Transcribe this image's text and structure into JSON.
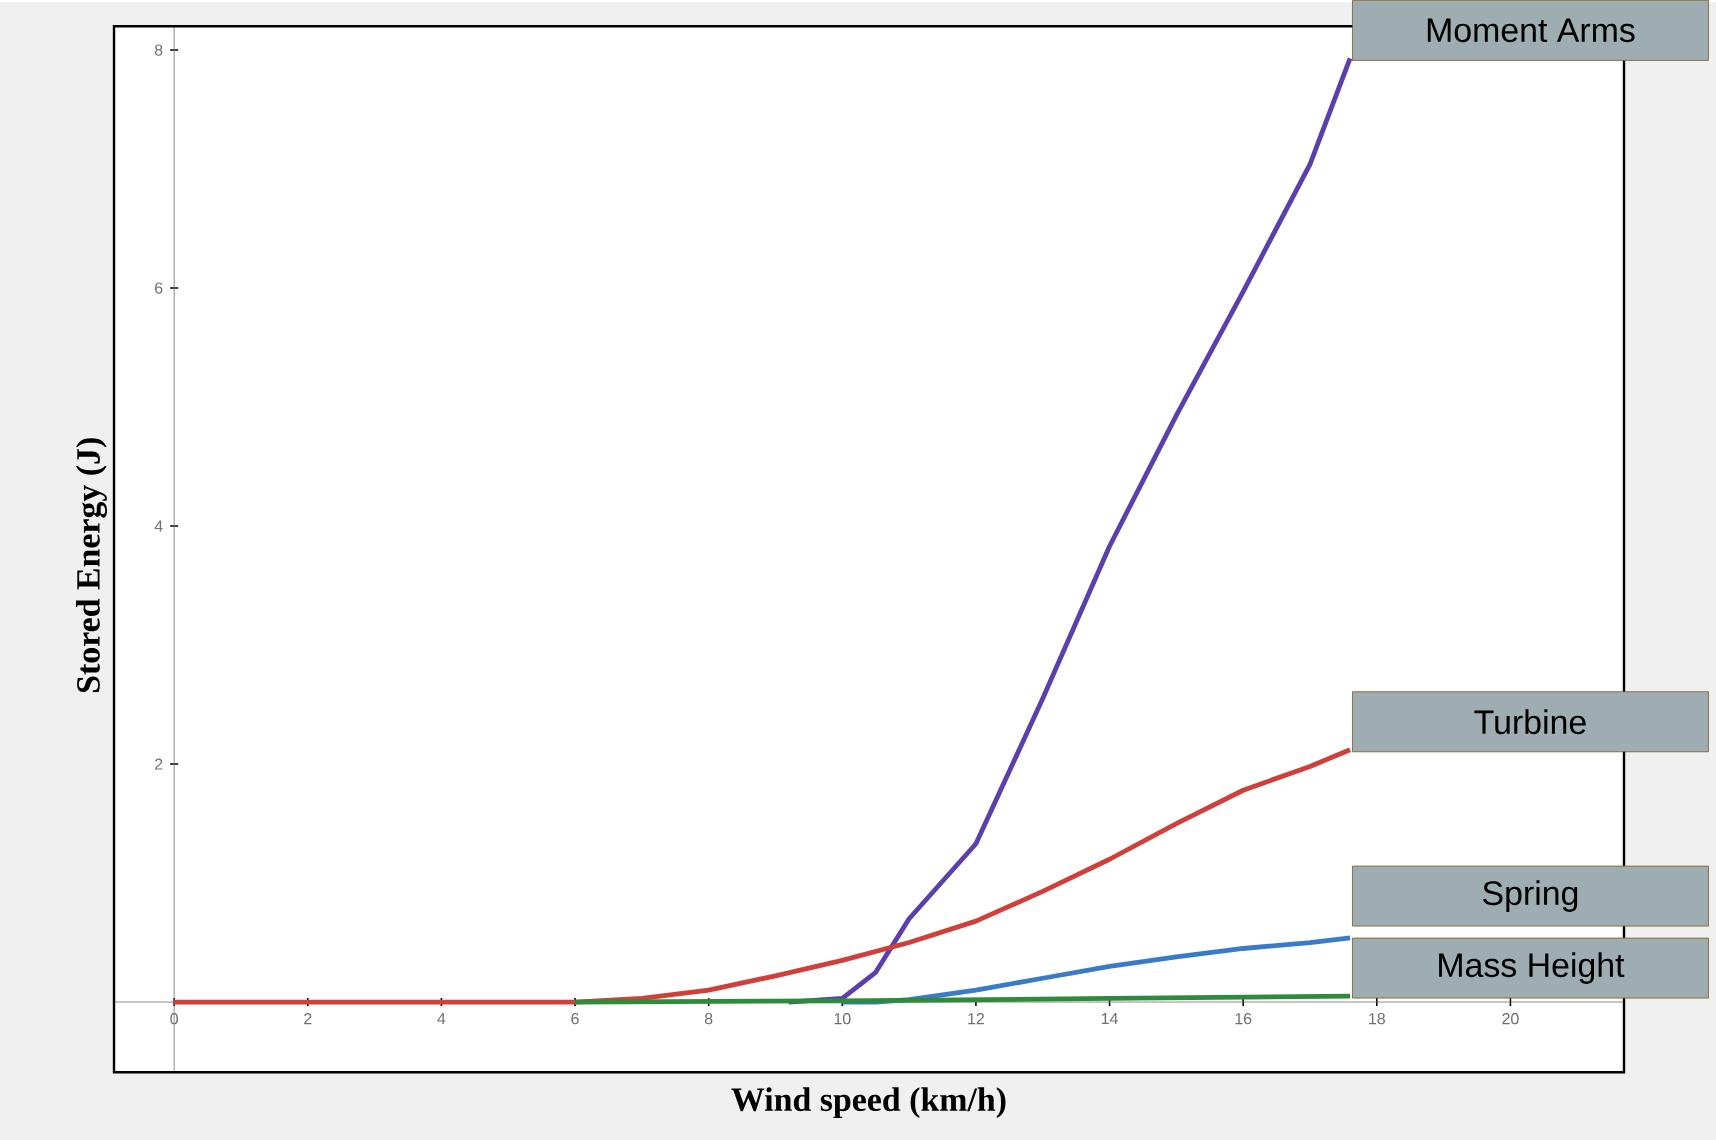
{
  "chart_data": {
    "type": "line",
    "xlabel": "Wind speed (km/h)",
    "ylabel": "Stored Energy (J)",
    "xlim": [
      -0.9,
      21.7
    ],
    "ylim": [
      -0.59,
      8.2
    ],
    "xticks": [
      0,
      2,
      4,
      6,
      8,
      10,
      12,
      14,
      16,
      18,
      20
    ],
    "yticks": [
      2,
      4,
      6,
      8
    ],
    "series": [
      {
        "name": "Moment Arms",
        "color": "#5b3fad",
        "x": [
          9.2,
          10,
          10.5,
          11,
          12,
          13,
          14,
          15,
          16,
          17,
          17.6
        ],
        "values": [
          0,
          0.03,
          0.25,
          0.7,
          1.33,
          2.55,
          3.83,
          4.93,
          5.97,
          7.04,
          7.93
        ]
      },
      {
        "name": "Turbine",
        "color": "#d0403a",
        "x": [
          0,
          6,
          7,
          8,
          9,
          10,
          11,
          12,
          13,
          14,
          15,
          16,
          17,
          17.6
        ],
        "values": [
          0,
          0,
          0.03,
          0.1,
          0.22,
          0.35,
          0.5,
          0.68,
          0.93,
          1.2,
          1.5,
          1.78,
          1.98,
          2.12
        ]
      },
      {
        "name": "Spring",
        "color": "#3a7bc8",
        "x": [
          10,
          10.5,
          11,
          12,
          13,
          14,
          15,
          16,
          17,
          17.6
        ],
        "values": [
          0,
          0,
          0.02,
          0.1,
          0.2,
          0.3,
          0.38,
          0.45,
          0.5,
          0.54
        ]
      },
      {
        "name": "Mass Height",
        "color": "#2e8b3a",
        "x": [
          6,
          10,
          14,
          17.6
        ],
        "values": [
          0,
          0.01,
          0.03,
          0.05
        ]
      }
    ]
  }
}
